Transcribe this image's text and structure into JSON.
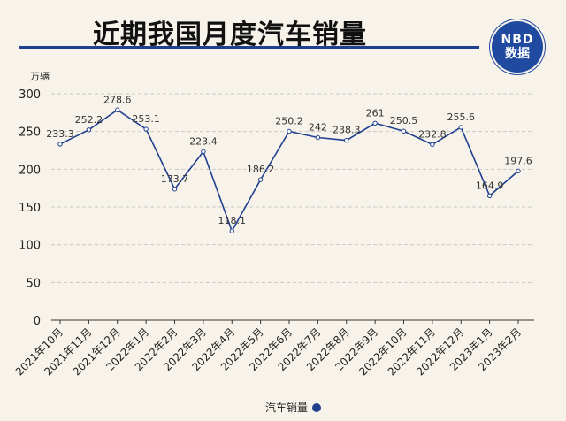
{
  "header": {
    "title": "近期我国月度汽车销量",
    "logo_line1": "NBD",
    "logo_line2": "数据"
  },
  "legend": {
    "label": "汽车销量"
  },
  "chart_data": {
    "type": "line",
    "title": "近期我国月度汽车销量",
    "unit": "万辆",
    "categories": [
      "2021年10月",
      "2021年11月",
      "2021年12月",
      "2022年1月",
      "2022年2月",
      "2022年3月",
      "2022年4月",
      "2022年5月",
      "2022年6月",
      "2022年7月",
      "2022年8月",
      "2022年9月",
      "2022年10月",
      "2022年11月",
      "2022年12月",
      "2023年1月",
      "2023年2月"
    ],
    "series": [
      {
        "name": "汽车销量",
        "values": [
          233.3,
          252.2,
          278.6,
          253.1,
          173.7,
          223.4,
          118.1,
          186.2,
          250.2,
          242,
          238.3,
          261,
          250.5,
          232.8,
          255.6,
          164.9,
          197.6
        ],
        "labels": [
          "233.3",
          "252.2",
          "278.6",
          "253.1",
          "173.7",
          "223.4",
          "118.1",
          "186.2",
          "250.2",
          "242",
          "238.3",
          "261",
          "250.5",
          "232.8",
          "255.6",
          "164.9",
          "197.6"
        ]
      }
    ],
    "ylim": [
      0,
      300
    ],
    "yticks": [
      "0",
      "50",
      "100",
      "150",
      "200",
      "250",
      "300"
    ],
    "grid": true,
    "legend_position": "bottom-center",
    "colors": {
      "line": "#1f3f8f",
      "grid": "#c8c8c8",
      "background": "#f8f3ea"
    }
  }
}
